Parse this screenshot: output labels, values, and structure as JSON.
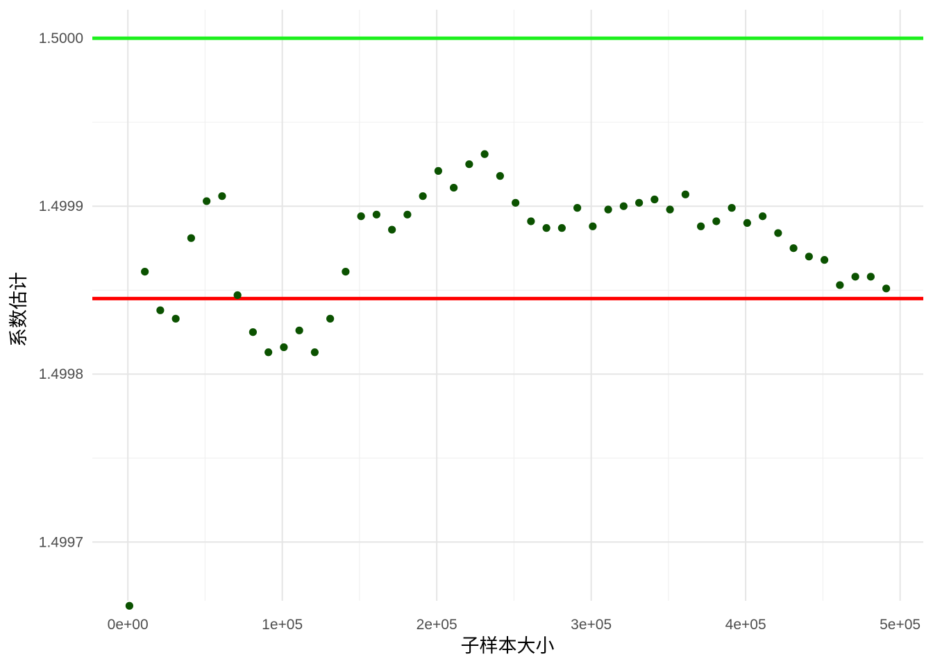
{
  "chart_data": {
    "type": "scatter",
    "xlabel": "子样本大小",
    "ylabel": "系数估计",
    "xlim": [
      -23000,
      515000
    ],
    "ylim": [
      1.499665,
      1.500017
    ],
    "x_ticks": [
      {
        "value": 0,
        "label": "0e+00"
      },
      {
        "value": 100000,
        "label": "1e+05"
      },
      {
        "value": 200000,
        "label": "2e+05"
      },
      {
        "value": 300000,
        "label": "3e+05"
      },
      {
        "value": 400000,
        "label": "4e+05"
      },
      {
        "value": 500000,
        "label": "5e+05"
      }
    ],
    "y_ticks": [
      {
        "value": 1.4997,
        "label": "1.4997"
      },
      {
        "value": 1.4998,
        "label": "1.4998"
      },
      {
        "value": 1.4999,
        "label": "1.4999"
      },
      {
        "value": 1.5,
        "label": "1.5000"
      }
    ],
    "grid": true,
    "reference_lines": [
      {
        "y": 1.5,
        "color": "#1ef01e"
      },
      {
        "y": 1.499845,
        "color": "#ff0000"
      }
    ],
    "point_color": "#0b5200",
    "series": [
      {
        "x": [
          1000,
          11000,
          21000,
          31000,
          41000,
          51000,
          61000,
          71000,
          81000,
          91000,
          101000,
          111000,
          121000,
          131000,
          141000,
          151000,
          161000,
          171000,
          181000,
          191000,
          201000,
          211000,
          221000,
          231000,
          241000,
          251000,
          261000,
          271000,
          281000,
          291000,
          301000,
          311000,
          321000,
          331000,
          341000,
          351000,
          361000,
          371000,
          381000,
          391000,
          401000,
          411000,
          421000,
          431000,
          441000,
          451000,
          461000,
          471000,
          481000,
          491000
        ],
        "y": [
          1.499662,
          1.499861,
          1.499838,
          1.499833,
          1.499881,
          1.499903,
          1.499906,
          1.499847,
          1.499825,
          1.499813,
          1.499816,
          1.499826,
          1.499813,
          1.499833,
          1.499861,
          1.499894,
          1.499895,
          1.499886,
          1.499895,
          1.499906,
          1.499921,
          1.499911,
          1.499925,
          1.499931,
          1.499918,
          1.499902,
          1.499891,
          1.499887,
          1.499887,
          1.499899,
          1.499888,
          1.499898,
          1.4999,
          1.499902,
          1.499904,
          1.499898,
          1.499907,
          1.499888,
          1.499891,
          1.499899,
          1.49989,
          1.499894,
          1.499884,
          1.499875,
          1.49987,
          1.499868,
          1.499853,
          1.499858,
          1.499858,
          1.499851
        ]
      }
    ]
  }
}
